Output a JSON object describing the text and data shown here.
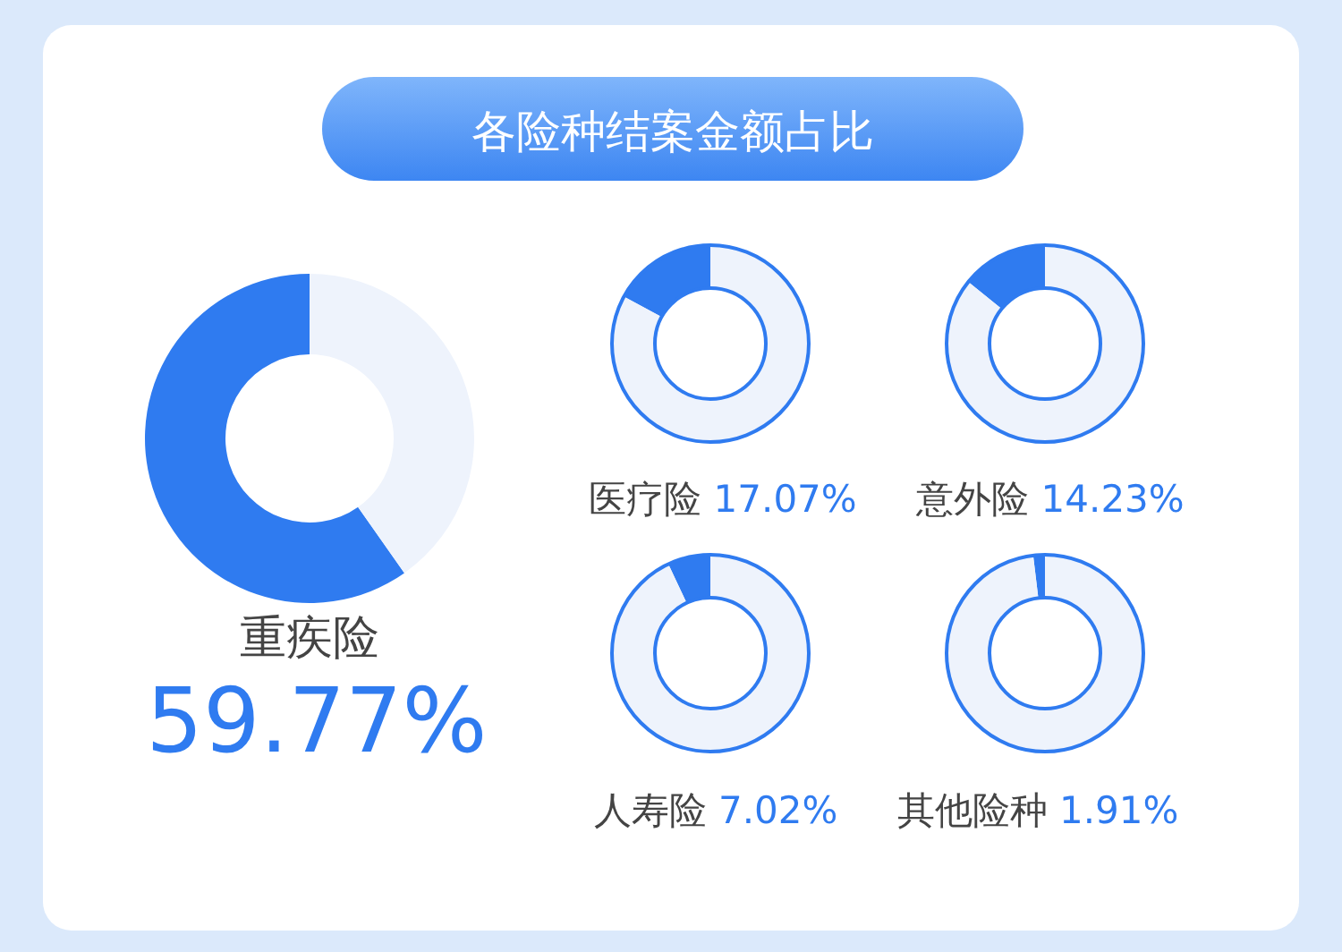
{
  "chart_data": [
    {
      "type": "other",
      "title": "各险种结案金额占比"
    },
    {
      "type": "donut",
      "title": "重疾险",
      "subtitle": "59.77%",
      "categories": [
        null,
        null
      ],
      "values": [
        59.77,
        40.23
      ],
      "colors": [
        "#2f7bf0",
        "#eef3fc"
      ]
    },
    {
      "type": "donut",
      "title": "医疗险",
      "subtitle": "17.07%",
      "categories": [
        null,
        null
      ],
      "values": [
        17.07,
        82.93
      ],
      "colors": [
        "#2f7bf0",
        "#eef3fc"
      ]
    },
    {
      "type": "donut",
      "title": "意外险",
      "subtitle": "14.23%",
      "categories": [
        null,
        null
      ],
      "values": [
        14.23,
        85.77
      ],
      "colors": [
        "#2f7bf0",
        "#eef3fc"
      ]
    },
    {
      "type": "donut",
      "title": "人寿险",
      "subtitle": "7.02%",
      "categories": [
        null,
        null
      ],
      "values": [
        7.02,
        92.98
      ],
      "colors": [
        "#2f7bf0",
        "#eef3fc"
      ]
    },
    {
      "type": "donut",
      "title": "其他险种",
      "subtitle": "1.91%",
      "categories": [
        null,
        null
      ],
      "values": [
        1.91,
        98.09
      ],
      "colors": [
        "#2f7bf0",
        "#eef3fc"
      ]
    }
  ]
}
